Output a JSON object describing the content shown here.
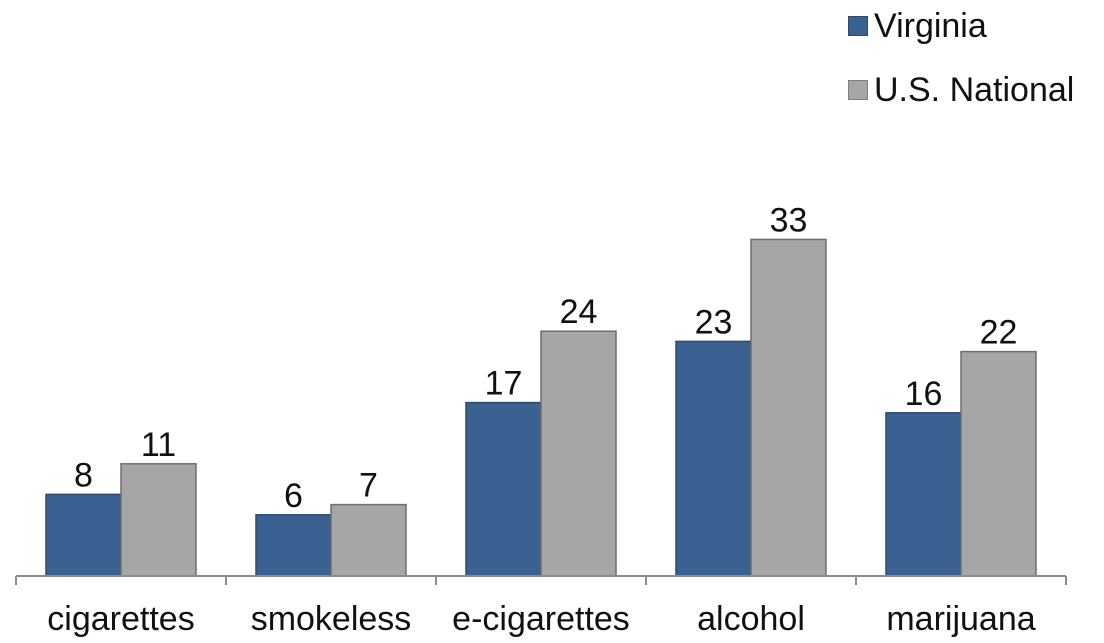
{
  "chart_data": {
    "type": "bar",
    "categories": [
      "cigarettes",
      "smokeless",
      "e-cigarettes",
      "alcohol",
      "marijuana"
    ],
    "series": [
      {
        "name": "Virginia",
        "values": [
          8,
          6,
          17,
          23,
          16
        ],
        "color": "#3a6192"
      },
      {
        "name": "U.S. National",
        "values": [
          11,
          7,
          24,
          33,
          22
        ],
        "color": "#a6a6a6"
      }
    ],
    "data_labels": true,
    "legend_position": "top-right",
    "ylim": [
      0,
      40
    ],
    "grid": false,
    "title": "",
    "xlabel": "",
    "ylabel": ""
  }
}
